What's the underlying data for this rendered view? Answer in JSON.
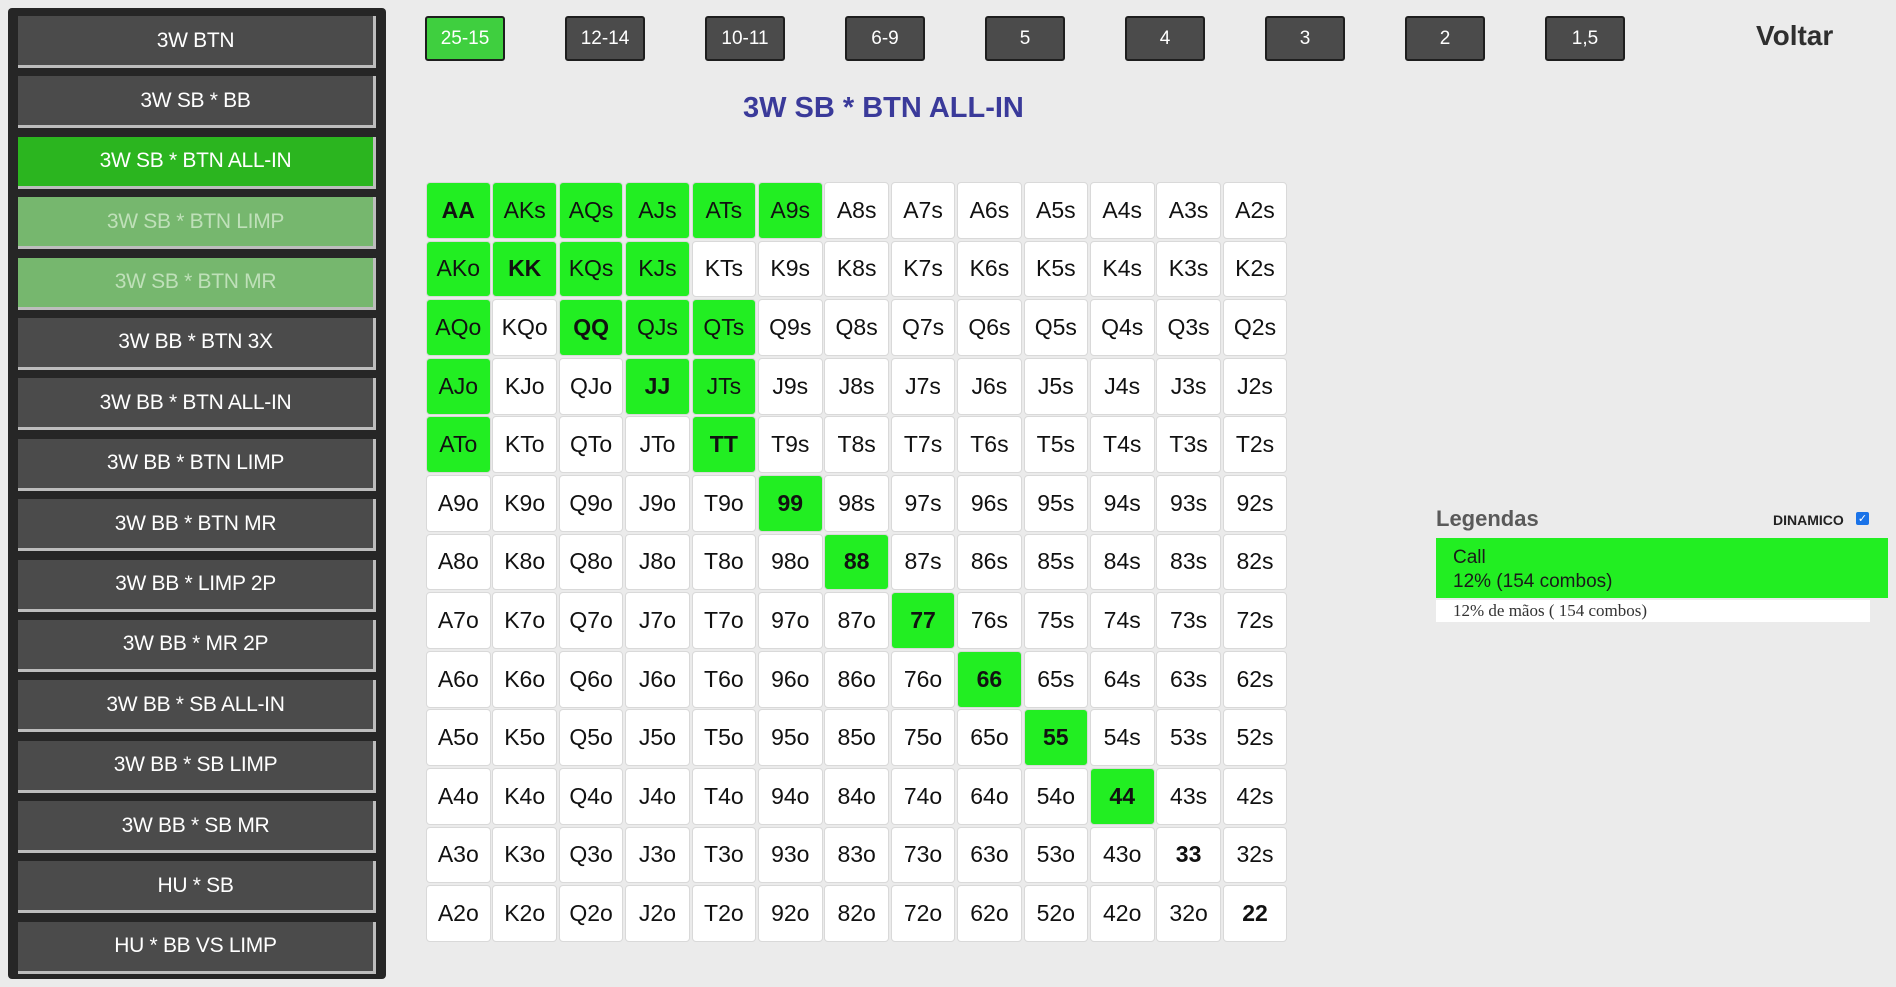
{
  "sidebar": {
    "items": [
      {
        "label": "3W BTN",
        "state": "normal"
      },
      {
        "label": "3W SB * BB",
        "state": "normal"
      },
      {
        "label": "3W SB * BTN ALL-IN",
        "state": "active"
      },
      {
        "label": "3W SB * BTN LIMP",
        "state": "light"
      },
      {
        "label": "3W SB * BTN MR",
        "state": "light"
      },
      {
        "label": "3W BB * BTN 3X",
        "state": "normal"
      },
      {
        "label": "3W BB * BTN ALL-IN",
        "state": "normal"
      },
      {
        "label": "3W BB * BTN LIMP",
        "state": "normal"
      },
      {
        "label": "3W BB * BTN MR",
        "state": "normal"
      },
      {
        "label": "3W BB * LIMP 2P",
        "state": "normal"
      },
      {
        "label": "3W BB * MR 2P",
        "state": "normal"
      },
      {
        "label": "3W BB * SB ALL-IN",
        "state": "normal"
      },
      {
        "label": "3W BB * SB LIMP",
        "state": "normal"
      },
      {
        "label": "3W BB * SB MR",
        "state": "normal"
      },
      {
        "label": "HU * SB",
        "state": "normal"
      },
      {
        "label": "HU * BB VS LIMP",
        "state": "normal"
      }
    ]
  },
  "ranges": {
    "items": [
      "25-15",
      "12-14",
      "10-11",
      "6-9",
      "5",
      "4",
      "3",
      "2",
      "1,5"
    ],
    "active_index": 0
  },
  "back_label": "Voltar",
  "title": "3W SB * BTN ALL-IN",
  "grid": {
    "hands": [
      [
        "AA",
        "AKs",
        "AQs",
        "AJs",
        "ATs",
        "A9s",
        "A8s",
        "A7s",
        "A6s",
        "A5s",
        "A4s",
        "A3s",
        "A2s"
      ],
      [
        "AKo",
        "KK",
        "KQs",
        "KJs",
        "KTs",
        "K9s",
        "K8s",
        "K7s",
        "K6s",
        "K5s",
        "K4s",
        "K3s",
        "K2s"
      ],
      [
        "AQo",
        "KQo",
        "QQ",
        "QJs",
        "QTs",
        "Q9s",
        "Q8s",
        "Q7s",
        "Q6s",
        "Q5s",
        "Q4s",
        "Q3s",
        "Q2s"
      ],
      [
        "AJo",
        "KJo",
        "QJo",
        "JJ",
        "JTs",
        "J9s",
        "J8s",
        "J7s",
        "J6s",
        "J5s",
        "J4s",
        "J3s",
        "J2s"
      ],
      [
        "ATo",
        "KTo",
        "QTo",
        "JTo",
        "TT",
        "T9s",
        "T8s",
        "T7s",
        "T6s",
        "T5s",
        "T4s",
        "T3s",
        "T2s"
      ],
      [
        "A9o",
        "K9o",
        "Q9o",
        "J9o",
        "T9o",
        "99",
        "98s",
        "97s",
        "96s",
        "95s",
        "94s",
        "93s",
        "92s"
      ],
      [
        "A8o",
        "K8o",
        "Q8o",
        "J8o",
        "T8o",
        "98o",
        "88",
        "87s",
        "86s",
        "85s",
        "84s",
        "83s",
        "82s"
      ],
      [
        "A7o",
        "K7o",
        "Q7o",
        "J7o",
        "T7o",
        "97o",
        "87o",
        "77",
        "76s",
        "75s",
        "74s",
        "73s",
        "72s"
      ],
      [
        "A6o",
        "K6o",
        "Q6o",
        "J6o",
        "T6o",
        "96o",
        "86o",
        "76o",
        "66",
        "65s",
        "64s",
        "63s",
        "62s"
      ],
      [
        "A5o",
        "K5o",
        "Q5o",
        "J5o",
        "T5o",
        "95o",
        "85o",
        "75o",
        "65o",
        "55",
        "54s",
        "53s",
        "52s"
      ],
      [
        "A4o",
        "K4o",
        "Q4o",
        "J4o",
        "T4o",
        "94o",
        "84o",
        "74o",
        "64o",
        "54o",
        "44",
        "43s",
        "42s"
      ],
      [
        "A3o",
        "K3o",
        "Q3o",
        "J3o",
        "T3o",
        "93o",
        "83o",
        "73o",
        "63o",
        "53o",
        "43o",
        "33",
        "32s"
      ],
      [
        "A2o",
        "K2o",
        "Q2o",
        "J2o",
        "T2o",
        "92o",
        "82o",
        "72o",
        "62o",
        "52o",
        "42o",
        "32o",
        "22"
      ]
    ],
    "call_hands": [
      "AA",
      "AKs",
      "AQs",
      "AJs",
      "ATs",
      "A9s",
      "AKo",
      "KK",
      "KQs",
      "KJs",
      "AQo",
      "QQ",
      "QJs",
      "QTs",
      "AJo",
      "JJ",
      "JTs",
      "ATo",
      "TT",
      "99",
      "88",
      "77",
      "66",
      "55",
      "44"
    ]
  },
  "colors": {
    "call": "#22ee22",
    "active_button": "#2bb51f",
    "range_active": "#3fcf3f",
    "title": "#3a3a9a"
  },
  "legend": {
    "title": "Legendas",
    "dynamic_label": "DINAMICO",
    "dynamic_checked": true,
    "call_label": "Call",
    "call_stats": "12% (154 combos)",
    "summary": "12% de mãos ( 154 combos)"
  }
}
